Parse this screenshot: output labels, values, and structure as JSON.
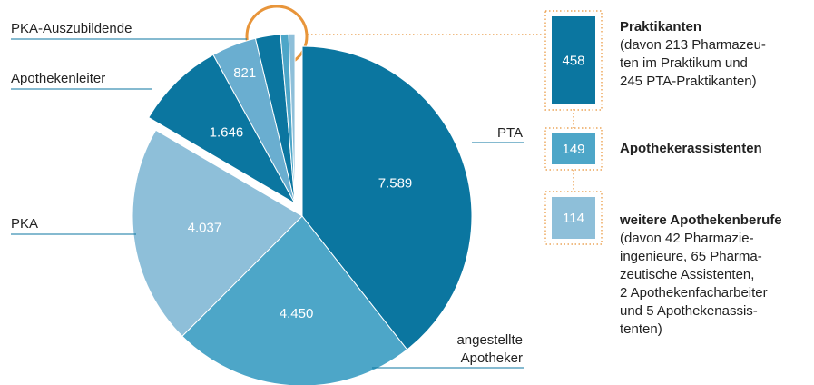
{
  "chart_data": {
    "type": "pie",
    "categories": [
      "PTA",
      "angestellte Apotheker",
      "PKA",
      "Apothekenleiter",
      "PKA-Auszubildende",
      "Praktikanten",
      "Apothekerassistenten",
      "weitere Apothekenberufe"
    ],
    "values": [
      7589,
      4450,
      4037,
      1646,
      821,
      458,
      149,
      114
    ],
    "value_labels": [
      "7.589",
      "4.450",
      "4.037",
      "1.646",
      "821",
      "458",
      "149",
      "114"
    ],
    "colors": [
      "#0b76a0",
      "#4da6c8",
      "#8ebfd9",
      "#0b76a0",
      "#6aaed0",
      "#0b76a0",
      "#4da6c8",
      "#8ebfd9"
    ],
    "descriptions": [
      [
        "(davon 213 Pharmazeu-",
        "ten im Praktikum und",
        "245 PTA-Praktikanten)"
      ],
      [],
      [
        "(davon 42 Pharmazie-",
        "ingenieure, 65 Pharma-",
        "zeutische Assistenten,",
        "2 Apothekenfacharbeiter",
        "und 5 Apothekenassis-",
        "tenten)"
      ]
    ]
  }
}
